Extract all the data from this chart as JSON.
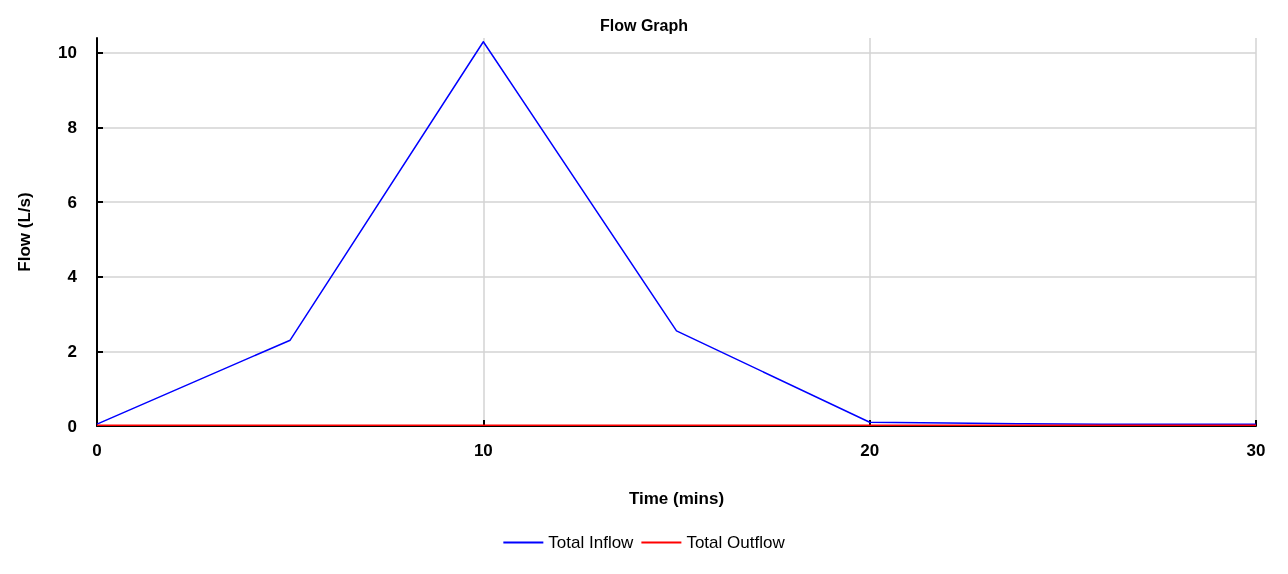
{
  "chart_data": {
    "type": "line",
    "title": "Flow Graph",
    "xlabel": "Time (mins)",
    "ylabel": "Flow (L/s)",
    "x": [
      0,
      5,
      10,
      15,
      20,
      22,
      24,
      26,
      28,
      30
    ],
    "series": [
      {
        "name": "Total Inflow",
        "color": "#0000ff",
        "values": [
          0.05,
          2.3,
          10.3,
          2.55,
          0.1,
          0.08,
          0.06,
          0.05,
          0.05,
          0.05
        ]
      },
      {
        "name": "Total Outflow",
        "color": "#ff0000",
        "values": [
          0.02,
          0.02,
          0.02,
          0.02,
          0.02,
          0.02,
          0.02,
          0.02,
          0.02,
          0.02
        ]
      }
    ],
    "xlim": [
      0,
      30
    ],
    "xticks": [
      0,
      10,
      20,
      30
    ],
    "ylim": [
      0,
      10.4
    ],
    "yticks": [
      0,
      2,
      4,
      6,
      8,
      10
    ],
    "grid": true,
    "legend": "bottom",
    "marker": "none",
    "line_style": "solid"
  }
}
